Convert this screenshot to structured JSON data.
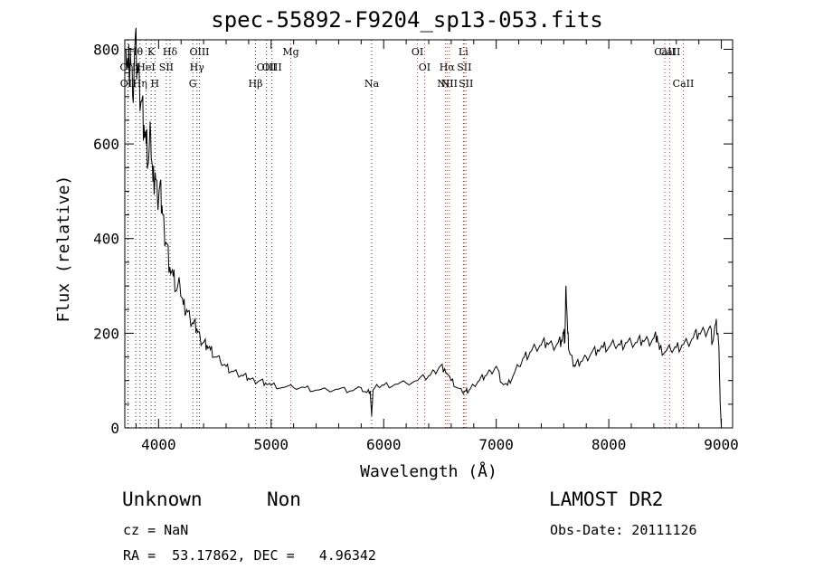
{
  "chart_data": {
    "type": "line",
    "title": "spec-55892-F9204_sp13-053.fits",
    "xlabel": "Wavelength (Å)",
    "ylabel": "Flux (relative)",
    "xlim": [
      3700,
      9100
    ],
    "ylim": [
      0,
      820
    ],
    "xticks": [
      4000,
      5000,
      6000,
      7000,
      8000,
      9000
    ],
    "yticks": [
      0,
      200,
      400,
      600,
      800
    ],
    "grid": false,
    "series": [
      {
        "x": [
          3710,
          3730,
          3750,
          3770,
          3790,
          3810,
          3830,
          3850,
          3870,
          3890,
          3910,
          3930,
          3950,
          3970,
          3990,
          4010,
          4030,
          4050,
          4070,
          4100,
          4130,
          4160,
          4190,
          4220,
          4250,
          4280,
          4310,
          4340,
          4370,
          4400,
          4430,
          4460,
          4500,
          4550,
          4600,
          4650,
          4700,
          4750,
          4800,
          4850,
          4900,
          4950,
          5000,
          5100,
          5200,
          5300,
          5400,
          5500,
          5600,
          5700,
          5800,
          5850,
          5880,
          5893,
          5905,
          5950,
          6000,
          6100,
          6200,
          6300,
          6400,
          6450,
          6500,
          6540,
          6600,
          6650,
          6700,
          6730,
          6760,
          6800,
          6850,
          6900,
          6950,
          7000,
          7050,
          7100,
          7150,
          7200,
          7250,
          7300,
          7350,
          7400,
          7450,
          7500,
          7550,
          7580,
          7600,
          7610,
          7620,
          7635,
          7650,
          7680,
          7700,
          7750,
          7800,
          7850,
          7900,
          7950,
          8000,
          8050,
          8100,
          8150,
          8200,
          8250,
          8300,
          8350,
          8400,
          8430,
          8450,
          8500,
          8550,
          8600,
          8650,
          8700,
          8750,
          8800,
          8850,
          8900,
          8920,
          8950,
          8970,
          8980,
          8990,
          9000,
          9005
        ],
        "y": [
          800,
          760,
          790,
          700,
          810,
          770,
          730,
          690,
          640,
          600,
          560,
          620,
          520,
          540,
          480,
          510,
          470,
          420,
          390,
          340,
          320,
          290,
          300,
          260,
          250,
          230,
          220,
          210,
          190,
          180,
          175,
          165,
          150,
          140,
          130,
          120,
          115,
          110,
          105,
          100,
          100,
          95,
          90,
          85,
          85,
          85,
          80,
          80,
          82,
          78,
          85,
          75,
          78,
          25,
          80,
          88,
          90,
          92,
          95,
          100,
          110,
          120,
          130,
          125,
          100,
          85,
          75,
          78,
          80,
          90,
          100,
          110,
          120,
          130,
          95,
          90,
          110,
          130,
          150,
          160,
          170,
          175,
          180,
          175,
          180,
          185,
          200,
          180,
          300,
          200,
          160,
          140,
          130,
          140,
          150,
          160,
          165,
          170,
          170,
          175,
          175,
          180,
          180,
          180,
          185,
          185,
          190,
          195,
          165,
          160,
          165,
          170,
          175,
          180,
          190,
          200,
          205,
          215,
          180,
          220,
          200,
          150,
          50,
          0,
          0
        ]
      }
    ],
    "lines": [
      {
        "label": "Hθ",
        "x": 3797,
        "row": 0,
        "color": "#333333"
      },
      {
        "label": "OII",
        "x": 3727,
        "row": 1,
        "color": "#333333"
      },
      {
        "label": "OII",
        "x": 3729,
        "row": 2,
        "color": "#333333"
      },
      {
        "label": "Hη",
        "x": 3835,
        "row": 2,
        "color": "#333333"
      },
      {
        "label": "HeI",
        "x": 3889,
        "row": 1,
        "color": "#333333"
      },
      {
        "label": "K",
        "x": 3934,
        "row": 0,
        "color": "#333333"
      },
      {
        "label": "H",
        "x": 3968,
        "row": 2,
        "color": "#333333"
      },
      {
        "label": "SII",
        "x": 4069,
        "row": 1,
        "color": "#333333"
      },
      {
        "label": "Hδ",
        "x": 4102,
        "row": 0,
        "color": "#333333"
      },
      {
        "label": "G",
        "x": 4304,
        "row": 2,
        "color": "#333333"
      },
      {
        "label": "Hγ",
        "x": 4341,
        "row": 1,
        "color": "#333333"
      },
      {
        "label": "OIII",
        "x": 4363,
        "row": 0,
        "color": "#333333"
      },
      {
        "label": "Hβ",
        "x": 4861,
        "row": 2,
        "color": "#333333"
      },
      {
        "label": "OIII",
        "x": 4959,
        "row": 1,
        "color": "#333333"
      },
      {
        "label": "OIII",
        "x": 5007,
        "row": 1,
        "color": "#333333"
      },
      {
        "label": "Mg",
        "x": 5175,
        "row": 0,
        "color": "#cc3333"
      },
      {
        "label": "Na",
        "x": 5893,
        "row": 2,
        "color": "#333333"
      },
      {
        "label": "OI",
        "x": 6300,
        "row": 0,
        "color": "#cc3333"
      },
      {
        "label": "OI",
        "x": 6363,
        "row": 1,
        "color": "#cc3333"
      },
      {
        "label": "NII",
        "x": 6548,
        "row": 2,
        "color": "#cc3333"
      },
      {
        "label": "Hα",
        "x": 6563,
        "row": 1,
        "color": "#cc3333"
      },
      {
        "label": "NII",
        "x": 6583,
        "row": 2,
        "color": "#cc3333"
      },
      {
        "label": "Li",
        "x": 6708,
        "row": 0,
        "color": "#333333"
      },
      {
        "label": "SII",
        "x": 6716,
        "row": 1,
        "color": "#cc3333"
      },
      {
        "label": "SII",
        "x": 6731,
        "row": 2,
        "color": "#cc3333"
      },
      {
        "label": "CaII",
        "x": 8498,
        "row": 0,
        "color": "#cc3333"
      },
      {
        "label": "CaII",
        "x": 8542,
        "row": 0,
        "color": "#cc3333"
      },
      {
        "label": "CaII",
        "x": 8662,
        "row": 2,
        "color": "#cc3333"
      }
    ]
  },
  "info": {
    "class": "Unknown",
    "subclass": "Non",
    "survey": "LAMOST DR2",
    "cz": "cz = NaN",
    "obs_date": "Obs-Date: 20111126",
    "radec": "RA =  53.17862, DEC =   4.96342"
  }
}
